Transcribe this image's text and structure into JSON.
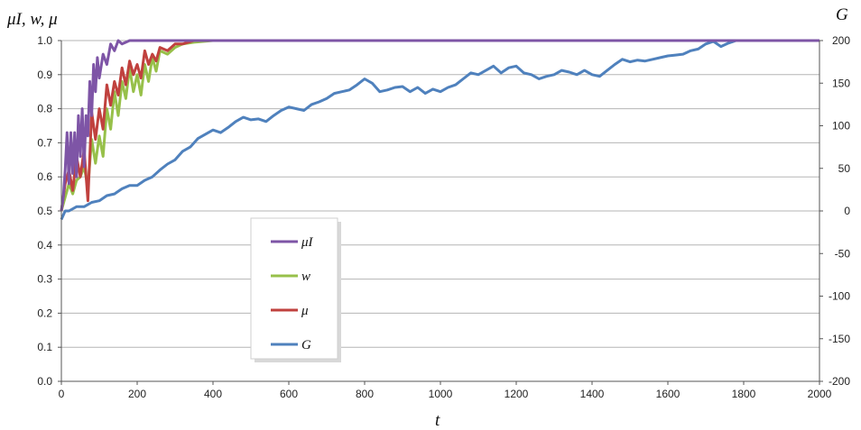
{
  "chart_data": {
    "type": "line",
    "title": "",
    "xlabel": "t",
    "ylabel_left": "μI, w, μ",
    "ylabel_right": "G",
    "xlim": [
      0,
      2000
    ],
    "ylim_left": [
      0.0,
      1.0
    ],
    "ylim_right": [
      -200,
      200
    ],
    "x_ticks": [
      "0",
      "200",
      "400",
      "600",
      "800",
      "1000",
      "1200",
      "1400",
      "1600",
      "1800",
      "2000"
    ],
    "y_left_ticks": [
      "0.0",
      "0.1",
      "0.2",
      "0.3",
      "0.4",
      "0.5",
      "0.6",
      "0.7",
      "0.8",
      "0.9",
      "1.0"
    ],
    "y_right_ticks": [
      "-200",
      "-150",
      "-100",
      "-50",
      "0",
      "50",
      "100",
      "150",
      "200"
    ],
    "grid": "horizontal",
    "legend_position": "lower-left",
    "colors": {
      "muI": "#7e55a6",
      "w": "#97c04a",
      "mu": "#c0413e",
      "G": "#4f81bd",
      "grid": "#b5b5b5"
    },
    "series": [
      {
        "name": "μI",
        "axis": "left",
        "x": [
          0,
          5,
          10,
          15,
          20,
          25,
          30,
          35,
          40,
          45,
          50,
          55,
          60,
          65,
          70,
          75,
          80,
          85,
          90,
          95,
          100,
          110,
          120,
          130,
          140,
          150,
          160,
          180,
          200,
          250,
          300,
          2000
        ],
        "values": [
          0.5,
          0.54,
          0.62,
          0.73,
          0.58,
          0.73,
          0.61,
          0.73,
          0.6,
          0.78,
          0.66,
          0.8,
          0.63,
          0.78,
          0.72,
          0.88,
          0.78,
          0.93,
          0.85,
          0.95,
          0.89,
          0.96,
          0.93,
          0.99,
          0.97,
          1.0,
          0.99,
          1.0,
          1.0,
          1.0,
          1.0,
          1.0
        ]
      },
      {
        "name": "w",
        "axis": "left",
        "x": [
          0,
          10,
          20,
          30,
          40,
          50,
          60,
          70,
          80,
          90,
          100,
          110,
          120,
          130,
          140,
          150,
          160,
          170,
          180,
          190,
          200,
          210,
          220,
          230,
          240,
          250,
          260,
          280,
          300,
          320,
          350,
          400,
          450,
          2000
        ],
        "values": [
          0.5,
          0.54,
          0.58,
          0.55,
          0.59,
          0.6,
          0.63,
          0.57,
          0.71,
          0.64,
          0.72,
          0.66,
          0.8,
          0.74,
          0.85,
          0.78,
          0.88,
          0.83,
          0.92,
          0.85,
          0.9,
          0.84,
          0.93,
          0.88,
          0.95,
          0.91,
          0.97,
          0.96,
          0.98,
          0.99,
          0.995,
          1.0,
          1.0,
          1.0
        ]
      },
      {
        "name": "μ",
        "axis": "left",
        "x": [
          0,
          10,
          20,
          30,
          40,
          50,
          60,
          70,
          80,
          90,
          100,
          110,
          120,
          130,
          140,
          150,
          160,
          170,
          180,
          190,
          200,
          210,
          220,
          230,
          240,
          250,
          260,
          280,
          300,
          320,
          350,
          400,
          2000
        ],
        "values": [
          0.5,
          0.58,
          0.62,
          0.56,
          0.66,
          0.6,
          0.68,
          0.53,
          0.79,
          0.71,
          0.8,
          0.74,
          0.87,
          0.81,
          0.88,
          0.84,
          0.92,
          0.87,
          0.94,
          0.9,
          0.93,
          0.89,
          0.97,
          0.93,
          0.96,
          0.94,
          0.98,
          0.97,
          0.99,
          0.99,
          1.0,
          1.0,
          1.0
        ]
      },
      {
        "name": "G",
        "axis": "right",
        "x": [
          0,
          10,
          20,
          40,
          60,
          80,
          100,
          120,
          140,
          160,
          180,
          200,
          220,
          240,
          260,
          280,
          300,
          320,
          340,
          360,
          380,
          400,
          420,
          440,
          460,
          480,
          500,
          520,
          540,
          560,
          580,
          600,
          620,
          640,
          660,
          680,
          700,
          720,
          740,
          760,
          780,
          800,
          820,
          840,
          860,
          880,
          900,
          920,
          940,
          960,
          980,
          1000,
          1020,
          1040,
          1060,
          1080,
          1100,
          1120,
          1140,
          1160,
          1180,
          1200,
          1220,
          1240,
          1260,
          1280,
          1300,
          1320,
          1340,
          1360,
          1380,
          1400,
          1420,
          1440,
          1460,
          1480,
          1500,
          1520,
          1540,
          1560,
          1580,
          1600,
          1620,
          1640,
          1660,
          1680,
          1700,
          1720,
          1740,
          1760,
          1780
        ],
        "values": [
          -10,
          0,
          0,
          5,
          5,
          10,
          12,
          18,
          20,
          26,
          30,
          30,
          36,
          40,
          48,
          55,
          60,
          70,
          75,
          85,
          90,
          95,
          92,
          98,
          105,
          110,
          107,
          108,
          105,
          112,
          118,
          122,
          120,
          118,
          125,
          128,
          132,
          138,
          140,
          142,
          148,
          155,
          150,
          140,
          142,
          145,
          146,
          140,
          145,
          138,
          143,
          140,
          145,
          148,
          155,
          162,
          160,
          165,
          170,
          162,
          168,
          170,
          162,
          160,
          155,
          158,
          160,
          165,
          163,
          160,
          165,
          160,
          158,
          165,
          172,
          178,
          175,
          177,
          176,
          178,
          180,
          182,
          183,
          184,
          188,
          190,
          196,
          199,
          193,
          197,
          200
        ]
      }
    ]
  }
}
